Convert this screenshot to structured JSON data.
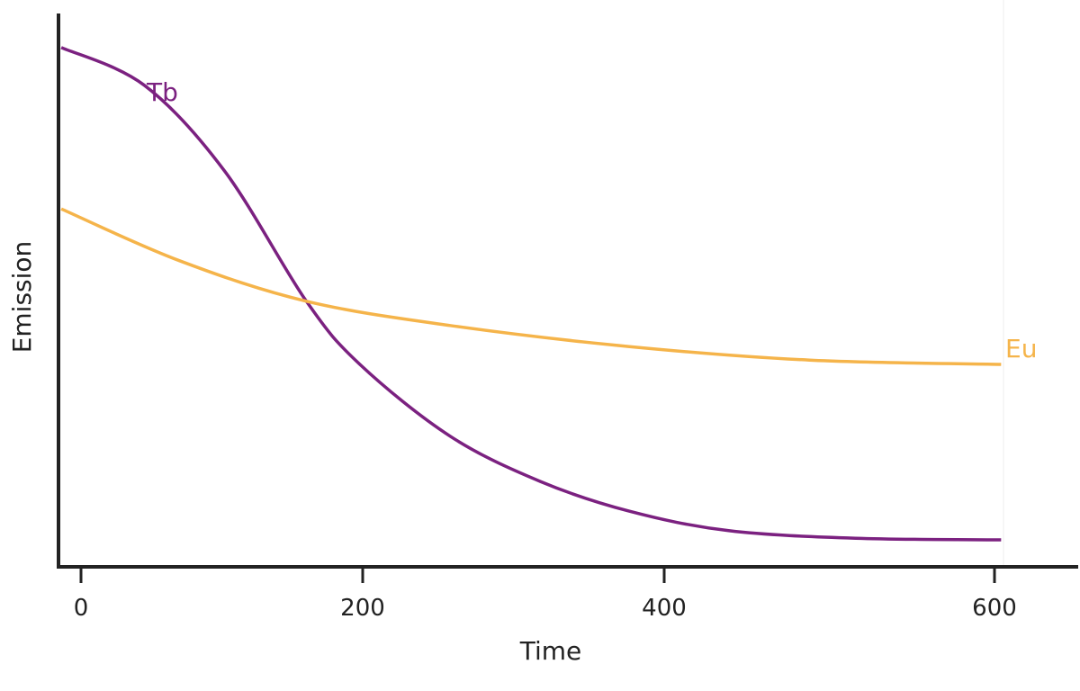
{
  "chart_data": {
    "type": "line",
    "title": "",
    "xlabel": "Time",
    "ylabel": "Emission",
    "xlim": [
      -14,
      660
    ],
    "ylim": [
      0,
      100
    ],
    "x_ticks": [
      0,
      200,
      400,
      600
    ],
    "x_tick_labels": [
      "0",
      "200",
      "400",
      "600"
    ],
    "grid": false,
    "legend": "inline labels at line ends",
    "series": [
      {
        "name": "Tb",
        "color": "#7b2180",
        "x": [
          -14,
          45,
          102,
          160,
          198,
          258,
          318,
          377,
          439,
          516,
          604
        ],
        "y": [
          96.2,
          89.2,
          73.3,
          49.2,
          37.5,
          24.2,
          15.8,
          10.3,
          6.7,
          5.3,
          5.0
        ]
      },
      {
        "name": "Eu",
        "color": "#f5b44a",
        "x": [
          -14,
          70,
          160,
          258,
          377,
          488,
          604
        ],
        "y": [
          66.3,
          56.7,
          49.2,
          44.7,
          40.8,
          38.3,
          37.5
        ]
      }
    ]
  }
}
